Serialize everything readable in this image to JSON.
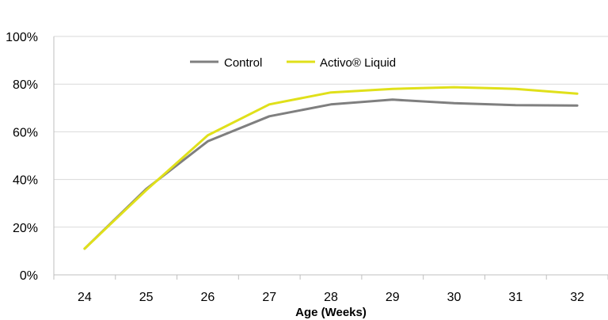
{
  "chart_data": {
    "type": "line",
    "title": "",
    "xlabel": "Age (Weeks)",
    "ylabel": "",
    "x": [
      24,
      25,
      26,
      27,
      28,
      29,
      30,
      31,
      32
    ],
    "ylim": [
      0,
      100
    ],
    "y_ticks": [
      "0%",
      "20%",
      "40%",
      "60%",
      "80%",
      "100%"
    ],
    "grid": true,
    "legend_position": "top-center",
    "series": [
      {
        "name": "Control",
        "color": "#7f7f7f",
        "values": [
          11,
          36,
          56,
          66.5,
          71.5,
          73.5,
          72,
          71.2,
          71
        ]
      },
      {
        "name": "Activo® Liquid",
        "color": "#e0e01a",
        "values": [
          11,
          35.5,
          58.5,
          71.5,
          76.5,
          78,
          78.7,
          78,
          76
        ]
      }
    ]
  }
}
